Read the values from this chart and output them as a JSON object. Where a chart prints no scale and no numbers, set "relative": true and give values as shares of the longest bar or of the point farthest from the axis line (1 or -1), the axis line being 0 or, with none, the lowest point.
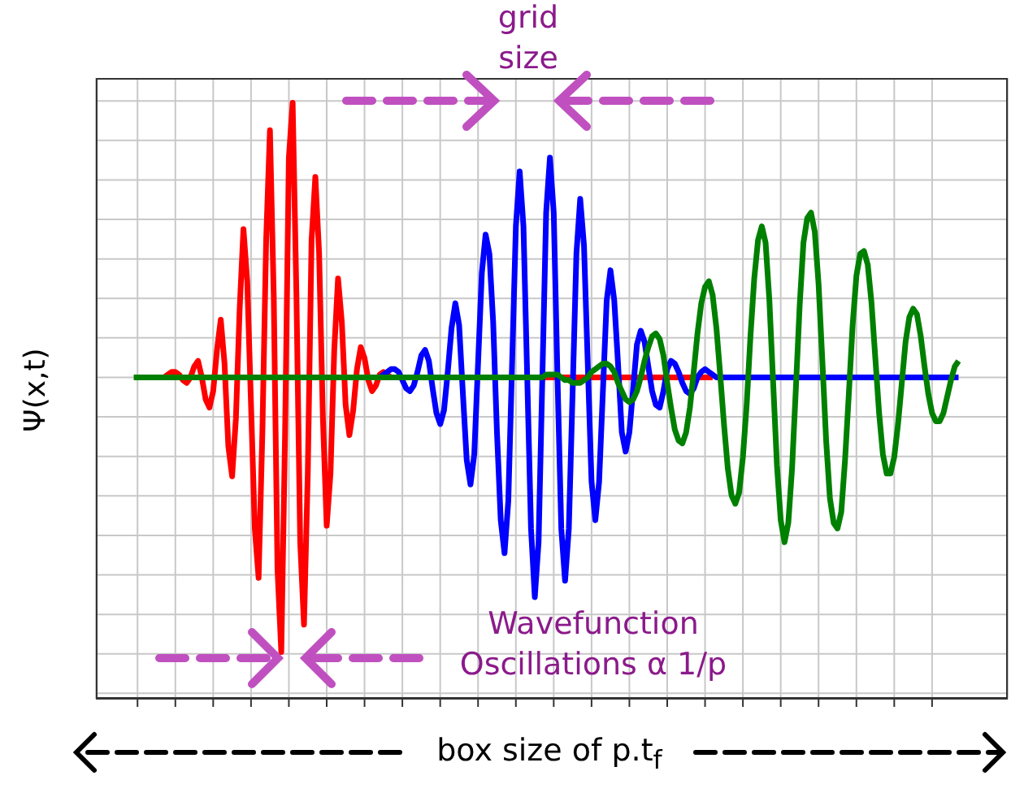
{
  "chart_data": {
    "type": "line",
    "relative": true,
    "grid": true,
    "xlabel": "box size of p.t$_{f}$",
    "ylabel": "Ψ(x,t)",
    "annotations": [
      "grid size",
      "Wavefunction Oscillations α 1/p"
    ],
    "categories": [
      null,
      null,
      null,
      null,
      null,
      null,
      null,
      null,
      null,
      null,
      null,
      null,
      null,
      null,
      null,
      null,
      null,
      null,
      null,
      null,
      null,
      null,
      null,
      null,
      null,
      null,
      null,
      null,
      null,
      null,
      null,
      null,
      null,
      null,
      null,
      null,
      null,
      null,
      null,
      null,
      null,
      null,
      null,
      null,
      null,
      null,
      null,
      null,
      null,
      null,
      null,
      null,
      null,
      null,
      null,
      null,
      null,
      null,
      null,
      null,
      null,
      null,
      null,
      null,
      null,
      null,
      null,
      null,
      null,
      null,
      null,
      null,
      null,
      null,
      null,
      null,
      null,
      null,
      null,
      null,
      null,
      null,
      null,
      null,
      null,
      null,
      null,
      null,
      null,
      null,
      null,
      null,
      null,
      null,
      null,
      null,
      null,
      null,
      null,
      null,
      null,
      null,
      null,
      null,
      null,
      null,
      null,
      null,
      null,
      null,
      null,
      null,
      null,
      null,
      null,
      null,
      null,
      null,
      null,
      null,
      null,
      null,
      null,
      null,
      null,
      null,
      null,
      null,
      null,
      null,
      null,
      null,
      null,
      null,
      null,
      null,
      null,
      null,
      null,
      null,
      null,
      null,
      null,
      null,
      null,
      null,
      null,
      null,
      null,
      null,
      null,
      null,
      null,
      null,
      null,
      null,
      null,
      null,
      null,
      null,
      null,
      null,
      null,
      null,
      null,
      null,
      null,
      null,
      null,
      null,
      null,
      null,
      null,
      null,
      null,
      null,
      null,
      null,
      null,
      null,
      null,
      null,
      null,
      null,
      null,
      null,
      null,
      null,
      null,
      null,
      null,
      null,
      null,
      null,
      null,
      null,
      null,
      null,
      null,
      null,
      null,
      null,
      null,
      null,
      null,
      null,
      null,
      null,
      null,
      null,
      null,
      null,
      null,
      null,
      null,
      null,
      null,
      null,
      null,
      null
    ],
    "series": [
      {
        "color": "#ff0000",
        "values": [
          null,
          null,
          null,
          null,
          null,
          null,
          null,
          0,
          0,
          0.01,
          0.02,
          0.02,
          0.01,
          -0.01,
          -0.02,
          0,
          0.04,
          0.06,
          0,
          -0.08,
          -0.11,
          -0.05,
          0.1,
          0.21,
          0.05,
          -0.25,
          -0.36,
          -0.15,
          0.25,
          0.54,
          0.35,
          -0.1,
          -0.55,
          -0.73,
          -0.2,
          0.5,
          0.9,
          0.3,
          -0.7,
          -1,
          -0.2,
          0.8,
          1,
          0.3,
          -0.6,
          -0.9,
          -0.35,
          0.5,
          0.73,
          0.45,
          -0.15,
          -0.54,
          -0.35,
          0.1,
          0.36,
          0.2,
          -0.1,
          -0.21,
          -0.12,
          0.03,
          0.11,
          0.07,
          -0.01,
          -0.05,
          -0.03,
          0.01,
          0.02,
          0.01,
          0,
          0,
          0,
          0,
          0,
          0,
          0,
          0,
          0,
          0,
          0,
          0,
          0,
          0,
          0,
          0,
          0,
          0,
          0,
          0,
          0,
          0,
          0,
          0,
          0,
          0,
          0,
          0,
          0,
          0,
          0,
          0,
          0,
          0,
          0,
          0,
          0,
          0,
          0,
          0,
          0,
          0,
          0,
          0,
          0,
          0,
          0,
          0,
          0,
          0,
          0,
          0,
          0,
          0,
          0,
          0,
          0,
          0,
          0,
          0,
          0,
          0,
          0,
          0,
          0,
          0,
          0,
          0,
          0,
          0,
          0,
          0,
          0,
          0,
          0,
          0,
          0,
          0,
          0,
          0,
          0,
          0,
          0,
          0,
          0,
          0,
          null,
          null,
          null,
          null,
          null,
          null,
          null,
          null,
          null,
          null,
          null,
          null,
          null,
          null,
          null,
          null,
          null,
          null,
          null,
          null,
          null,
          null,
          null,
          null,
          null,
          null,
          null,
          null,
          null,
          null,
          null,
          null,
          null,
          null,
          null,
          null,
          null,
          null,
          null,
          null,
          null,
          null,
          null,
          null,
          null,
          null,
          null,
          null,
          null,
          null,
          null,
          null,
          null,
          null,
          null,
          null,
          null,
          null,
          null,
          null,
          null,
          null,
          null,
          null,
          null,
          null
        ]
      },
      {
        "color": "#0000ff",
        "values": [
          null,
          null,
          null,
          null,
          null,
          null,
          null,
          null,
          null,
          null,
          null,
          null,
          null,
          null,
          null,
          null,
          null,
          null,
          null,
          null,
          null,
          null,
          null,
          null,
          null,
          null,
          null,
          null,
          null,
          null,
          null,
          null,
          null,
          null,
          null,
          null,
          null,
          null,
          null,
          null,
          null,
          null,
          null,
          null,
          null,
          null,
          null,
          null,
          null,
          null,
          null,
          null,
          null,
          null,
          null,
          null,
          null,
          null,
          null,
          null,
          null,
          null,
          0,
          0,
          0,
          0,
          0.01,
          0.02,
          0.03,
          0.03,
          0.02,
          -0.01,
          -0.04,
          -0.05,
          -0.03,
          0.02,
          0.08,
          0.1,
          0.06,
          -0.04,
          -0.13,
          -0.17,
          -0.12,
          0.02,
          0.18,
          0.27,
          0.19,
          -0.06,
          -0.3,
          -0.39,
          -0.28,
          0.05,
          0.38,
          0.52,
          0.45,
          0.2,
          -0.2,
          -0.52,
          -0.64,
          -0.45,
          0.05,
          0.55,
          0.75,
          0.55,
          0,
          -0.55,
          -0.8,
          -0.6,
          0,
          0.6,
          0.8,
          0.6,
          0,
          -0.55,
          -0.74,
          -0.55,
          -0.05,
          0.45,
          0.65,
          0.48,
          0.05,
          -0.38,
          -0.52,
          -0.38,
          -0.05,
          0.28,
          0.39,
          0.28,
          0.05,
          -0.2,
          -0.27,
          -0.2,
          -0.04,
          0.12,
          0.17,
          0.13,
          0.04,
          -0.05,
          -0.1,
          -0.11,
          -0.05,
          0.03,
          0.06,
          0.05,
          0.02,
          -0.02,
          -0.05,
          -0.06,
          -0.04,
          0,
          0.02,
          0.03,
          0.02,
          0.01,
          0,
          0,
          0,
          0,
          0,
          0,
          0,
          0,
          0,
          0,
          0,
          0,
          0,
          0,
          0,
          0,
          0,
          0,
          0,
          0,
          0,
          0,
          0,
          0,
          0,
          0,
          0,
          0,
          0,
          0,
          0,
          0,
          0,
          0,
          0,
          0,
          0,
          0,
          0,
          0,
          0,
          0,
          0,
          0,
          0,
          0,
          0,
          0,
          0,
          0,
          0,
          0,
          0,
          0,
          0,
          0,
          0,
          0,
          0,
          0,
          0,
          0,
          0,
          0,
          0,
          null
        ]
      },
      {
        "color": "#008000",
        "values": [
          0,
          0,
          0,
          0,
          0,
          0,
          0,
          0,
          0,
          0,
          0,
          0,
          0,
          0,
          0,
          0,
          0,
          0,
          0,
          0,
          0,
          0,
          0,
          0,
          0,
          0,
          0,
          0,
          0,
          0,
          0,
          0,
          0,
          0,
          0,
          0,
          0,
          0,
          0,
          0,
          0,
          0,
          0,
          0,
          0,
          0,
          0,
          0,
          0,
          0,
          0,
          0,
          0,
          0,
          0,
          0,
          0,
          0,
          0,
          0,
          0,
          0,
          0,
          0,
          0,
          0,
          0,
          0,
          0,
          0,
          0,
          0,
          0,
          0,
          0,
          0,
          0,
          0,
          0,
          0,
          0,
          0,
          0,
          0,
          0,
          0,
          0,
          0,
          0,
          0,
          0,
          0,
          0,
          0,
          0,
          0,
          0,
          0,
          0,
          0,
          0,
          0,
          0,
          0,
          0,
          0,
          0,
          0,
          0,
          0.01,
          0.01,
          0.01,
          0.01,
          0,
          -0.01,
          -0.01,
          -0.02,
          -0.02,
          -0.02,
          -0.01,
          0,
          0.02,
          0.03,
          0.04,
          0.05,
          0.05,
          0.04,
          0.02,
          -0.02,
          -0.05,
          -0.08,
          -0.09,
          -0.08,
          -0.05,
          0,
          0.06,
          0.11,
          0.15,
          0.16,
          0.14,
          0.08,
          -0.02,
          -0.11,
          -0.19,
          -0.23,
          -0.24,
          -0.2,
          -0.11,
          0.02,
          0.16,
          0.27,
          0.33,
          0.35,
          0.3,
          0.18,
          0.01,
          -0.17,
          -0.33,
          -0.43,
          -0.46,
          -0.42,
          -0.29,
          -0.1,
          0.15,
          0.36,
          0.5,
          0.55,
          0.49,
          0.28,
          -0.02,
          -0.32,
          -0.52,
          -0.6,
          -0.53,
          -0.33,
          -0.04,
          0.26,
          0.49,
          0.58,
          0.6,
          0.53,
          0.34,
          0.06,
          -0.23,
          -0.44,
          -0.53,
          -0.55,
          -0.49,
          -0.3,
          -0.06,
          0.19,
          0.37,
          0.45,
          0.46,
          0.41,
          0.27,
          0.07,
          -0.13,
          -0.28,
          -0.35,
          -0.35,
          -0.29,
          -0.17,
          -0.02,
          0.13,
          0.22,
          0.25,
          0.23,
          0.15,
          0.04,
          -0.06,
          -0.13,
          -0.16,
          -0.16,
          -0.13,
          -0.07,
          -0.01,
          0.04,
          0.06,
          null
        ]
      }
    ]
  }
}
